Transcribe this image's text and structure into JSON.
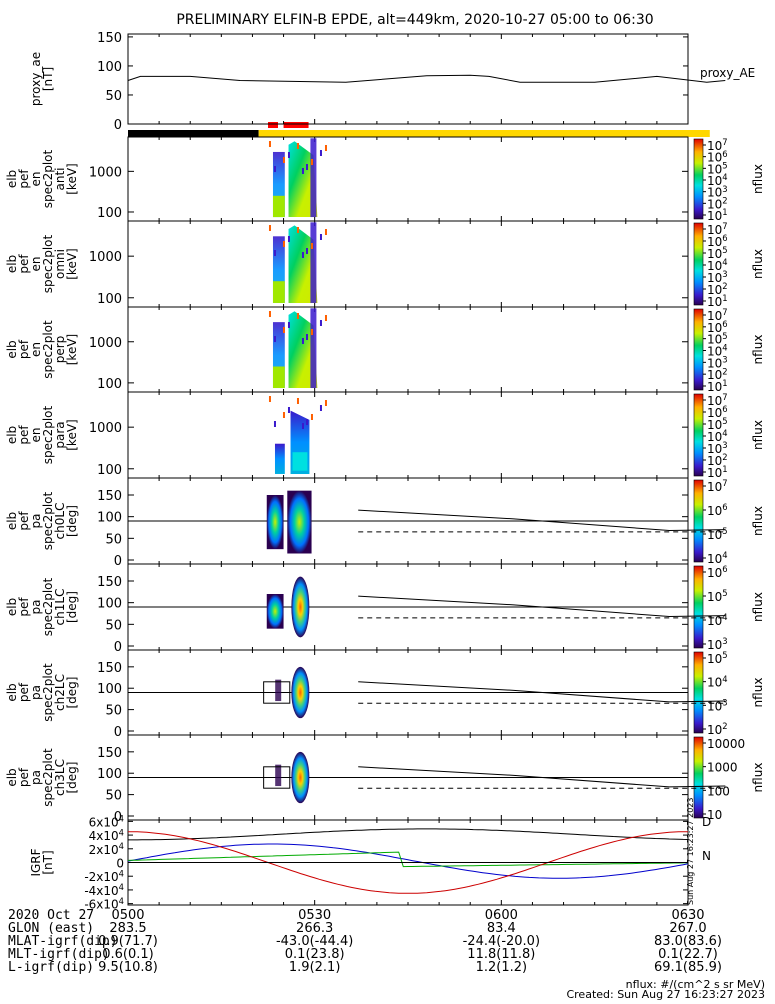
{
  "title": "PRELIMINARY ELFIN-B EPDE, alt=449km, 2020-10-27 05:00 to 06:30",
  "colors": {
    "background": "#ffffff",
    "axes": "#000000",
    "night_bar": "#000000",
    "sun_bar": "#ffd700",
    "science_bar": "#ff0000",
    "igrf_x": "#0000cc",
    "igrf_y": "#00aa00",
    "igrf_z": "#cc0000",
    "igrf_total": "#000000"
  },
  "panels": [
    {
      "key": "proxy_ae",
      "ylabel_lines": [
        "proxy_ae",
        "[nT]"
      ],
      "side_label": "proxy_AE",
      "yticks": [
        "0",
        "50",
        "100",
        "150"
      ],
      "ylim": [
        0,
        155
      ]
    },
    {
      "key": "spec_anti",
      "ylabel_lines": [
        "elb",
        "pef",
        "en",
        "spec2plot",
        "anti",
        "[keV]"
      ],
      "yticks": [
        "100",
        "1000"
      ],
      "yscale": "log",
      "colorbar_ticks": [
        "10^7",
        "10^6",
        "10^5",
        "10^4",
        "10^3",
        "10^2",
        "10^1"
      ],
      "colorbar_label": "nflux"
    },
    {
      "key": "spec_perp_omni",
      "ylabel_lines": [
        "elb",
        "pef",
        "en",
        "spec2plot",
        "omni",
        "[keV]"
      ],
      "yticks": [
        "100",
        "1000"
      ],
      "yscale": "log",
      "colorbar_ticks": [
        "10^7",
        "10^6",
        "10^5",
        "10^4",
        "10^3",
        "10^2",
        "10^1"
      ],
      "colorbar_label": "nflux"
    },
    {
      "key": "spec_perp",
      "ylabel_lines": [
        "elb",
        "pef",
        "en",
        "spec2plot",
        "perp",
        "[keV]"
      ],
      "yticks": [
        "100",
        "1000"
      ],
      "yscale": "log",
      "colorbar_ticks": [
        "10^7",
        "10^6",
        "10^5",
        "10^4",
        "10^3",
        "10^2",
        "10^1"
      ],
      "colorbar_label": "nflux"
    },
    {
      "key": "spec_para",
      "ylabel_lines": [
        "elb",
        "pef",
        "en",
        "spec2plot",
        "para",
        "[keV]"
      ],
      "yticks": [
        "100",
        "1000"
      ],
      "yscale": "log",
      "colorbar_ticks": [
        "10^7",
        "10^6",
        "10^5",
        "10^4",
        "10^3",
        "10^2",
        "10^1"
      ],
      "colorbar_label": "nflux"
    },
    {
      "key": "pa_ch0",
      "ylabel_lines": [
        "elb",
        "pef",
        "pa",
        "spec2plot",
        "ch0LC",
        "[deg]"
      ],
      "yticks": [
        "0",
        "50",
        "100",
        "150"
      ],
      "colorbar_ticks": [
        "10^7",
        "10^6",
        "10^5",
        "10^4"
      ],
      "colorbar_label": "nflux"
    },
    {
      "key": "pa_ch1",
      "ylabel_lines": [
        "elb",
        "pef",
        "pa",
        "spec2plot",
        "ch1LC",
        "[deg]"
      ],
      "yticks": [
        "0",
        "50",
        "100",
        "150"
      ],
      "colorbar_ticks": [
        "10^6",
        "10^5",
        "10^4",
        "10^3"
      ],
      "colorbar_label": "nflux"
    },
    {
      "key": "pa_ch2",
      "ylabel_lines": [
        "elb",
        "pef",
        "pa",
        "spec2plot",
        "ch2LC",
        "[deg]"
      ],
      "yticks": [
        "0",
        "50",
        "100",
        "150"
      ],
      "colorbar_ticks": [
        "10^5",
        "10^4",
        "10^3",
        "10^2"
      ],
      "colorbar_label": "nflux"
    },
    {
      "key": "pa_ch3",
      "ylabel_lines": [
        "elb",
        "pef",
        "pa",
        "spec2plot",
        "ch3LC",
        "[deg]"
      ],
      "yticks": [
        "0",
        "50",
        "100",
        "150"
      ],
      "colorbar_ticks": [
        "10000",
        "1000",
        "100",
        "10"
      ],
      "colorbar_label": "nflux"
    },
    {
      "key": "igrf",
      "ylabel_lines": [
        "IGRF",
        "[nT]"
      ],
      "yticks": [
        "-6x10^4",
        "-4x10^4",
        "-2x10^4",
        "0",
        "2x10^4",
        "4x10^4",
        "6x10^4"
      ],
      "side_letters": [
        "D",
        "N"
      ],
      "side_stamp": "Sun Aug 27 16:23:27 2023"
    }
  ],
  "chart_data": {
    "type": "line",
    "title": "PRELIMINARY ELFIN-B EPDE, alt=449km, 2020-10-27 05:00 to 06:30",
    "x_range": [
      "05:00",
      "06:30"
    ],
    "x_tick_labels": [
      "0500",
      "0530",
      "0600",
      "0630"
    ],
    "proxy_ae": {
      "name": "proxy_AE",
      "ylabel": "proxy_ae [nT]",
      "ylim": [
        0,
        155
      ],
      "x_minutes": [
        0,
        2,
        10,
        18,
        35,
        48,
        55,
        58,
        63,
        75,
        85,
        93,
        96
      ],
      "values": [
        75,
        82,
        82,
        75,
        72,
        83,
        84,
        82,
        72,
        72,
        82,
        72,
        75
      ]
    },
    "pa_loss_cone_lines": {
      "note_lines": [
        "solid",
        "dashed"
      ],
      "x_minutes": [
        37,
        96
      ],
      "solid_values": [
        115,
        70
      ],
      "dashed_values": [
        65,
        65
      ]
    },
    "igrf": {
      "ylabel": "IGRF [nT]",
      "ylim": [
        -62000,
        62000
      ],
      "series_colors": [
        "#000000",
        "#0000cc",
        "#00aa00",
        "#cc0000"
      ]
    }
  },
  "ephemeris": {
    "rows": [
      {
        "label": "2020 Oct 27",
        "values": [
          "0500",
          "0530",
          "0600",
          "0630"
        ]
      },
      {
        "label": "GLON (east)",
        "values": [
          "283.5",
          "266.3",
          "83.4",
          "267.0"
        ]
      },
      {
        "label": "MLAT-igrf(dip)",
        "values": [
          "0.9(71.7)",
          "-43.0(-44.4)",
          "-24.4(-20.0)",
          "83.0(83.6)"
        ]
      },
      {
        "label": "MLT-igrf(dip)",
        "values": [
          "0.6(0.1)",
          "0.1(23.8)",
          "11.8(11.8)",
          "0.1(22.7)"
        ]
      },
      {
        "label": "L-igrf(dip)",
        "values": [
          "9.5(10.8)",
          "1.9(2.1)",
          "1.2(1.2)",
          "69.1(85.9)"
        ]
      }
    ],
    "footer_line1": "nflux: #/(cm^2 s sr MeV)",
    "footer_line2": "Created: Sun Aug 27 16:23:27 2023"
  }
}
